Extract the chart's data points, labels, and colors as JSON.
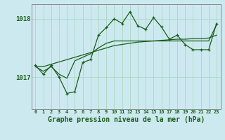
{
  "title": "Graphe pression niveau de la mer (hPa)",
  "background_color": "#cde9f0",
  "plot_bg_color": "#cde9f0",
  "grid_color": "#b0d8c8",
  "line_color": "#1a5e1a",
  "x_labels": [
    "0",
    "1",
    "2",
    "3",
    "4",
    "5",
    "6",
    "7",
    "8",
    "9",
    "10",
    "11",
    "12",
    "13",
    "14",
    "15",
    "16",
    "17",
    "18",
    "19",
    "20",
    "21",
    "22",
    "23"
  ],
  "x_values": [
    0,
    1,
    2,
    3,
    4,
    5,
    6,
    7,
    8,
    9,
    10,
    11,
    12,
    13,
    14,
    15,
    16,
    17,
    18,
    19,
    20,
    21,
    22,
    23
  ],
  "y_main": [
    1017.2,
    1017.05,
    1017.2,
    1017.0,
    1016.72,
    1016.75,
    1017.25,
    1017.3,
    1017.72,
    1017.85,
    1018.0,
    1017.92,
    1018.12,
    1017.88,
    1017.82,
    1018.02,
    1017.86,
    1017.65,
    1017.72,
    1017.56,
    1017.47,
    1017.47,
    1017.47,
    1017.92
  ],
  "y_trend1": [
    1017.18,
    1017.18,
    1017.22,
    1017.26,
    1017.3,
    1017.34,
    1017.38,
    1017.42,
    1017.46,
    1017.5,
    1017.54,
    1017.56,
    1017.58,
    1017.6,
    1017.61,
    1017.62,
    1017.63,
    1017.64,
    1017.65,
    1017.65,
    1017.66,
    1017.66,
    1017.67,
    1017.72
  ],
  "y_trend2": [
    1017.18,
    1017.1,
    1017.18,
    1017.05,
    1016.98,
    1017.28,
    1017.34,
    1017.4,
    1017.5,
    1017.58,
    1017.62,
    1017.62,
    1017.62,
    1017.62,
    1017.62,
    1017.62,
    1017.62,
    1017.62,
    1017.62,
    1017.62,
    1017.62,
    1017.62,
    1017.62,
    1017.9
  ],
  "ylim": [
    1016.45,
    1018.25
  ],
  "yticks": [
    1017,
    1018
  ],
  "marker": "+"
}
